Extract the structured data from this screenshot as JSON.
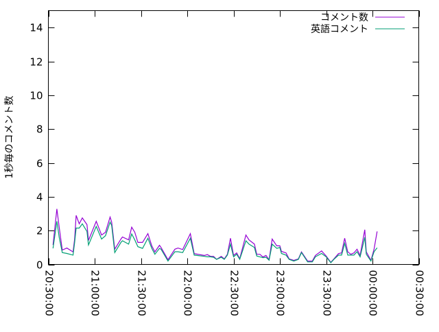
{
  "chart_data": {
    "type": "line",
    "title": "",
    "xlabel": "",
    "ylabel": "1秒毎のコメント数",
    "xlim": [
      "20:30:00",
      "00:30:00"
    ],
    "ylim": [
      0,
      15
    ],
    "x_ticks": [
      "20:30:00",
      "21:00:00",
      "21:30:00",
      "22:00:00",
      "22:30:00",
      "23:00:00",
      "23:30:00",
      "00:00:00",
      "00:30:00"
    ],
    "y_ticks": [
      0,
      2,
      4,
      6,
      8,
      10,
      12,
      14
    ],
    "grid": false,
    "legend_position": "top-right",
    "x": [
      "20:33:00",
      "20:35:30",
      "20:37:00",
      "20:39:00",
      "20:42:00",
      "20:46:00",
      "20:47:00",
      "20:48:00",
      "20:50:00",
      "20:52:00",
      "20:55:00",
      "20:56:00",
      "21:01:00",
      "21:04:30",
      "21:07:00",
      "21:10:00",
      "21:11:00",
      "21:13:00",
      "21:17:00",
      "21:18:00",
      "21:22:00",
      "21:24:00",
      "21:26:00",
      "21:28:00",
      "21:31:00",
      "21:34:30",
      "21:37:00",
      "21:39:00",
      "21:42:00",
      "21:43:00",
      "21:47:30",
      "21:52:00",
      "21:54:00",
      "21:57:00",
      "22:02:00",
      "22:04:30",
      "22:11:00",
      "22:13:00",
      "22:15:00",
      "22:17:00",
      "22:19:00",
      "22:22:00",
      "22:24:00",
      "22:26:00",
      "22:28:00",
      "22:30:00",
      "22:32:00",
      "22:34:00",
      "22:38:00",
      "22:40:00",
      "22:43:30",
      "22:45:00",
      "22:47:00",
      "22:49:00",
      "22:51:00",
      "22:53:00",
      "22:55:00",
      "22:58:00",
      "23:00:00",
      "23:01:00",
      "23:04:00",
      "23:06:00",
      "23:09:00",
      "23:12:00",
      "23:14:00",
      "23:18:00",
      "23:21:00",
      "23:23:00",
      "23:27:00",
      "23:30:00",
      "23:33:00",
      "23:35:00",
      "23:38:00",
      "23:40:00",
      "23:42:00",
      "23:44:00",
      "23:46:00",
      "23:48:00",
      "23:50:00",
      "23:52:00",
      "23:55:00",
      "23:56:00",
      "23:59:00",
      "00:01:00",
      "00:03:00"
    ],
    "series": [
      {
        "name": "コメント数",
        "color": "#9400d3",
        "values": [
          1.15,
          3.28,
          2.2,
          0.85,
          0.97,
          0.74,
          1.5,
          2.9,
          2.4,
          2.75,
          2.35,
          1.42,
          2.55,
          1.74,
          1.9,
          2.8,
          2.5,
          0.9,
          1.5,
          1.62,
          1.45,
          2.2,
          1.9,
          1.3,
          1.3,
          1.82,
          1.1,
          0.74,
          1.13,
          1.0,
          0.28,
          0.9,
          0.97,
          0.88,
          1.82,
          0.64,
          0.53,
          0.58,
          0.48,
          0.48,
          0.3,
          0.48,
          0.33,
          0.6,
          1.55,
          0.53,
          0.68,
          0.34,
          1.74,
          1.45,
          1.2,
          0.6,
          0.6,
          0.44,
          0.53,
          0.28,
          1.5,
          1.1,
          1.1,
          0.77,
          0.68,
          0.33,
          0.24,
          0.33,
          0.74,
          0.2,
          0.2,
          0.53,
          0.8,
          0.5,
          0.12,
          0.33,
          0.64,
          0.68,
          1.55,
          0.74,
          0.6,
          0.68,
          0.9,
          0.53,
          2.05,
          0.74,
          0.24,
          0.9,
          1.95
        ]
      },
      {
        "name": "英語コメント",
        "color": "#009e73",
        "values": [
          0.95,
          2.55,
          1.6,
          0.7,
          0.65,
          0.55,
          1.3,
          2.15,
          2.15,
          2.4,
          1.95,
          1.15,
          2.25,
          1.5,
          1.7,
          2.5,
          2.3,
          0.7,
          1.3,
          1.4,
          1.2,
          1.8,
          1.45,
          1.05,
          0.95,
          1.55,
          0.95,
          0.6,
          0.95,
          0.9,
          0.2,
          0.75,
          0.75,
          0.7,
          1.55,
          0.55,
          0.48,
          0.45,
          0.45,
          0.42,
          0.3,
          0.42,
          0.3,
          0.55,
          1.2,
          0.45,
          0.6,
          0.3,
          1.4,
          1.2,
          1.0,
          0.5,
          0.45,
          0.4,
          0.42,
          0.25,
          1.2,
          0.95,
          1.0,
          0.65,
          0.55,
          0.3,
          0.2,
          0.3,
          0.7,
          0.15,
          0.15,
          0.45,
          0.65,
          0.45,
          0.1,
          0.3,
          0.55,
          0.55,
          1.25,
          0.55,
          0.55,
          0.55,
          0.75,
          0.45,
          1.6,
          0.6,
          0.2,
          0.75,
          0.98
        ]
      }
    ]
  }
}
